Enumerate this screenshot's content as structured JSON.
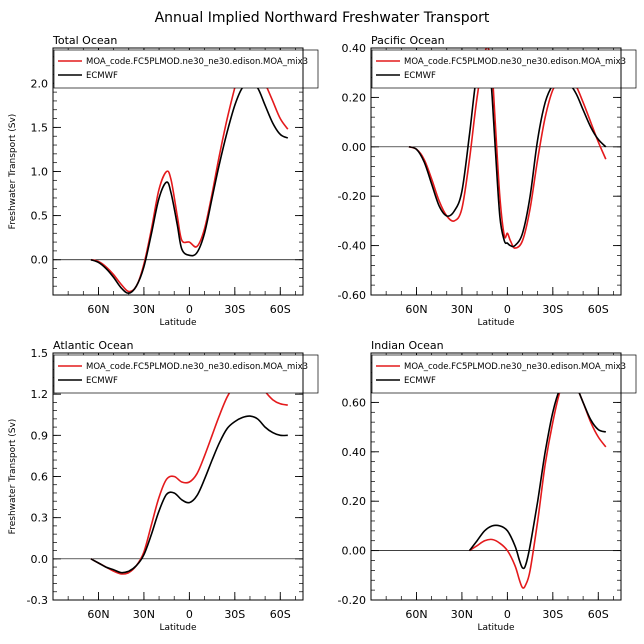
{
  "figure_title": "Annual Implied Northward Freshwater Transport",
  "chart_data": [
    {
      "type": "line",
      "title": "Total Ocean",
      "xlabel": "Latitude",
      "ylabel": "Freshwater Transport (Sv)",
      "xlim": [
        -90,
        75
      ],
      "ylim": [
        -0.4,
        2.4
      ],
      "x_ticks": [
        {
          "v": -60,
          "label": "60N"
        },
        {
          "v": -30,
          "label": "30N"
        },
        {
          "v": 0,
          "label": "0"
        },
        {
          "v": 30,
          "label": "30S"
        },
        {
          "v": 60,
          "label": "60S"
        }
      ],
      "y_ticks": [
        {
          "v": 0,
          "label": "0.0"
        },
        {
          "v": 0.5,
          "label": "0.5"
        },
        {
          "v": 1.0,
          "label": "1.0"
        },
        {
          "v": 1.5,
          "label": "1.5"
        },
        {
          "v": 2.0,
          "label": "2.0"
        }
      ],
      "series": [
        {
          "name": "MOA_code.FC5PLMOD.ne30_ne30.edison.MOA_mix3",
          "color": "#e41a1c",
          "x": [
            -65,
            -60,
            -55,
            -50,
            -45,
            -40,
            -35,
            -30,
            -25,
            -20,
            -15,
            -12,
            -8,
            -5,
            0,
            5,
            10,
            15,
            20,
            25,
            30,
            35,
            40,
            45,
            50,
            55,
            60,
            65
          ],
          "y": [
            0.0,
            -0.02,
            -0.08,
            -0.17,
            -0.28,
            -0.36,
            -0.3,
            -0.05,
            0.35,
            0.8,
            1.0,
            0.9,
            0.5,
            0.22,
            0.2,
            0.15,
            0.35,
            0.75,
            1.2,
            1.6,
            1.95,
            2.25,
            2.33,
            2.2,
            2.0,
            1.8,
            1.6,
            1.48
          ]
        },
        {
          "name": "ECMWF",
          "color": "#000000",
          "x": [
            -65,
            -60,
            -55,
            -50,
            -45,
            -40,
            -35,
            -30,
            -25,
            -20,
            -15,
            -12,
            -8,
            -5,
            0,
            5,
            10,
            15,
            20,
            25,
            30,
            35,
            40,
            45,
            50,
            55,
            60,
            65
          ],
          "y": [
            0.0,
            -0.03,
            -0.1,
            -0.2,
            -0.32,
            -0.38,
            -0.3,
            -0.08,
            0.3,
            0.7,
            0.88,
            0.75,
            0.4,
            0.12,
            0.05,
            0.08,
            0.3,
            0.7,
            1.1,
            1.45,
            1.75,
            1.95,
            2.01,
            1.95,
            1.75,
            1.55,
            1.42,
            1.38
          ]
        }
      ]
    },
    {
      "type": "line",
      "title": "Pacific Ocean",
      "xlabel": "Latitude",
      "ylabel": "",
      "xlim": [
        -90,
        75
      ],
      "ylim": [
        -0.6,
        0.4
      ],
      "x_ticks": [
        {
          "v": -60,
          "label": "60N"
        },
        {
          "v": -30,
          "label": "30N"
        },
        {
          "v": 0,
          "label": "0"
        },
        {
          "v": 30,
          "label": "30S"
        },
        {
          "v": 60,
          "label": "60S"
        }
      ],
      "y_ticks": [
        {
          "v": -0.6,
          "label": "-0.60"
        },
        {
          "v": -0.4,
          "label": "-0.40"
        },
        {
          "v": -0.2,
          "label": "-0.20"
        },
        {
          "v": 0,
          "label": "0.00"
        },
        {
          "v": 0.2,
          "label": "0.20"
        },
        {
          "v": 0.4,
          "label": "0.40"
        }
      ],
      "series": [
        {
          "name": "MOA_code.FC5PLMOD.ne30_ne30.edison.MOA_mix3",
          "color": "#e41a1c",
          "x": [
            -65,
            -60,
            -55,
            -50,
            -45,
            -40,
            -35,
            -30,
            -25,
            -20,
            -15,
            -12,
            -10,
            -8,
            -5,
            -2,
            0,
            2,
            5,
            10,
            15,
            20,
            25,
            30,
            35,
            40,
            45,
            50,
            55,
            60,
            65
          ],
          "y": [
            0.0,
            -0.01,
            -0.05,
            -0.13,
            -0.22,
            -0.28,
            -0.3,
            -0.25,
            -0.05,
            0.2,
            0.38,
            0.39,
            0.3,
            0.1,
            -0.2,
            -0.36,
            -0.35,
            -0.38,
            -0.41,
            -0.38,
            -0.25,
            -0.05,
            0.12,
            0.23,
            0.27,
            0.28,
            0.25,
            0.18,
            0.1,
            0.02,
            -0.05
          ]
        },
        {
          "name": "ECMWF",
          "color": "#000000",
          "x": [
            -65,
            -60,
            -55,
            -50,
            -45,
            -40,
            -35,
            -30,
            -25,
            -20,
            -15,
            -12,
            -10,
            -8,
            -5,
            -2,
            0,
            2,
            5,
            10,
            15,
            20,
            25,
            30,
            35,
            40,
            45,
            50,
            55,
            60,
            65
          ],
          "y": [
            0.0,
            -0.01,
            -0.06,
            -0.15,
            -0.24,
            -0.28,
            -0.26,
            -0.18,
            0.05,
            0.3,
            0.38,
            0.34,
            0.2,
            0.0,
            -0.28,
            -0.38,
            -0.39,
            -0.4,
            -0.4,
            -0.35,
            -0.2,
            0.03,
            0.18,
            0.25,
            0.27,
            0.26,
            0.22,
            0.15,
            0.08,
            0.03,
            0.0
          ]
        }
      ]
    },
    {
      "type": "line",
      "title": "Atlantic Ocean",
      "xlabel": "Latitude",
      "ylabel": "Freshwater Transport (Sv)",
      "xlim": [
        -90,
        75
      ],
      "ylim": [
        -0.3,
        1.5
      ],
      "x_ticks": [
        {
          "v": -60,
          "label": "60N"
        },
        {
          "v": -30,
          "label": "30N"
        },
        {
          "v": 0,
          "label": "0"
        },
        {
          "v": 30,
          "label": "30S"
        },
        {
          "v": 60,
          "label": "60S"
        }
      ],
      "y_ticks": [
        {
          "v": -0.3,
          "label": "-0.3"
        },
        {
          "v": 0,
          "label": "0.0"
        },
        {
          "v": 0.3,
          "label": "0.3"
        },
        {
          "v": 0.6,
          "label": "0.6"
        },
        {
          "v": 0.9,
          "label": "0.9"
        },
        {
          "v": 1.2,
          "label": "1.2"
        },
        {
          "v": 1.5,
          "label": "1.5"
        }
      ],
      "series": [
        {
          "name": "MOA_code.FC5PLMOD.ne30_ne30.edison.MOA_mix3",
          "color": "#e41a1c",
          "x": [
            -65,
            -60,
            -55,
            -50,
            -45,
            -40,
            -35,
            -30,
            -25,
            -20,
            -15,
            -10,
            -5,
            0,
            5,
            10,
            15,
            20,
            25,
            30,
            35,
            40,
            45,
            50,
            55,
            60,
            65
          ],
          "y": [
            0.0,
            -0.03,
            -0.06,
            -0.09,
            -0.11,
            -0.1,
            -0.05,
            0.05,
            0.25,
            0.45,
            0.58,
            0.6,
            0.56,
            0.56,
            0.62,
            0.75,
            0.9,
            1.05,
            1.18,
            1.27,
            1.32,
            1.34,
            1.3,
            1.22,
            1.16,
            1.13,
            1.12
          ]
        },
        {
          "name": "ECMWF",
          "color": "#000000",
          "x": [
            -65,
            -60,
            -55,
            -50,
            -45,
            -40,
            -35,
            -30,
            -25,
            -20,
            -15,
            -10,
            -5,
            0,
            5,
            10,
            15,
            20,
            25,
            30,
            35,
            40,
            45,
            50,
            55,
            60,
            65
          ],
          "y": [
            0.0,
            -0.03,
            -0.06,
            -0.08,
            -0.1,
            -0.09,
            -0.05,
            0.03,
            0.18,
            0.35,
            0.47,
            0.48,
            0.43,
            0.41,
            0.46,
            0.58,
            0.72,
            0.85,
            0.95,
            1.0,
            1.03,
            1.04,
            1.02,
            0.96,
            0.92,
            0.9,
            0.9
          ]
        }
      ]
    },
    {
      "type": "line",
      "title": "Indian Ocean",
      "xlabel": "Latitude",
      "ylabel": "",
      "xlim": [
        -90,
        75
      ],
      "ylim": [
        -0.2,
        0.8
      ],
      "x_ticks": [
        {
          "v": -60,
          "label": "60N"
        },
        {
          "v": -30,
          "label": "30N"
        },
        {
          "v": 0,
          "label": "0"
        },
        {
          "v": 30,
          "label": "30S"
        },
        {
          "v": 60,
          "label": "60S"
        }
      ],
      "y_ticks": [
        {
          "v": -0.2,
          "label": "-0.20"
        },
        {
          "v": 0,
          "label": "0.00"
        },
        {
          "v": 0.2,
          "label": "0.20"
        },
        {
          "v": 0.4,
          "label": "0.40"
        },
        {
          "v": 0.6,
          "label": "0.60"
        }
      ],
      "series": [
        {
          "name": "MOA_code.FC5PLMOD.ne30_ne30.edison.MOA_mix3",
          "color": "#e41a1c",
          "x": [
            -25,
            -20,
            -15,
            -10,
            -5,
            0,
            5,
            8,
            10,
            12,
            15,
            20,
            25,
            30,
            35,
            40,
            45,
            50,
            55,
            60,
            65
          ],
          "y": [
            0.0,
            0.02,
            0.04,
            0.045,
            0.03,
            0.0,
            -0.06,
            -0.12,
            -0.15,
            -0.14,
            -0.08,
            0.12,
            0.35,
            0.52,
            0.65,
            0.71,
            0.67,
            0.6,
            0.52,
            0.46,
            0.42
          ]
        },
        {
          "name": "ECMWF",
          "color": "#000000",
          "x": [
            -25,
            -20,
            -15,
            -10,
            -5,
            0,
            5,
            8,
            10,
            12,
            15,
            20,
            25,
            30,
            35,
            40,
            45,
            50,
            55,
            60,
            65
          ],
          "y": [
            0.0,
            0.04,
            0.08,
            0.1,
            0.1,
            0.08,
            0.02,
            -0.04,
            -0.07,
            -0.06,
            0.02,
            0.2,
            0.4,
            0.56,
            0.66,
            0.7,
            0.67,
            0.6,
            0.53,
            0.49,
            0.48
          ]
        }
      ]
    }
  ]
}
